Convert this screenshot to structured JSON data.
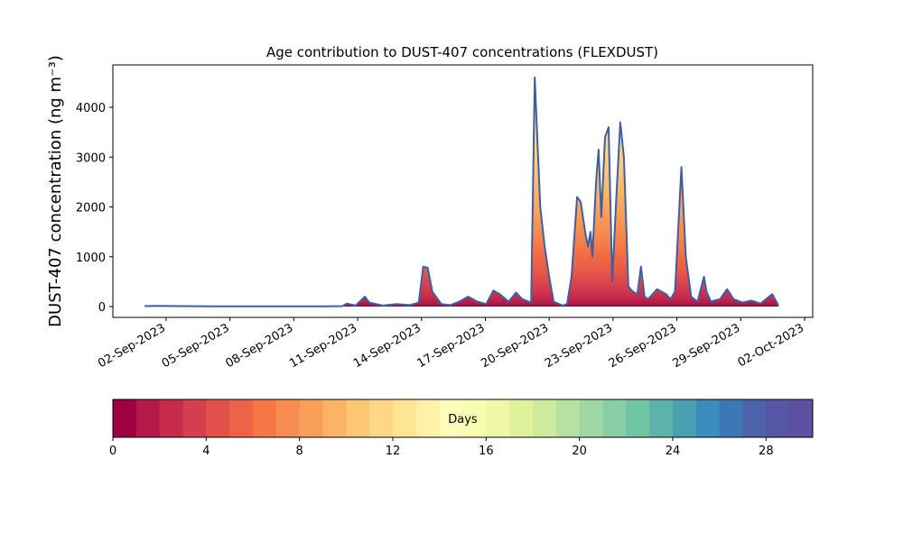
{
  "chart_data": {
    "type": "area-line",
    "title": "Age contribution to DUST-407 concentrations (FLEXDUST)",
    "ylabel": "DUST-407 concentration (ng m⁻³)",
    "x": [
      0.99,
      1.62,
      2.68,
      4.37,
      6.9,
      9.44,
      10.28,
      10.49,
      10.91,
      11.34,
      11.55,
      12.18,
      12.82,
      13.45,
      13.87,
      14.08,
      14.29,
      14.51,
      14.93,
      15.35,
      15.77,
      16.2,
      16.62,
      17.04,
      17.38,
      17.67,
      18.1,
      18.44,
      18.73,
      19.15,
      19.32,
      19.45,
      19.58,
      19.79,
      20.0,
      20.21,
      20.63,
      20.84,
      21.05,
      21.31,
      21.48,
      21.69,
      21.82,
      21.94,
      22.03,
      22.2,
      22.32,
      22.45,
      22.62,
      22.79,
      22.96,
      23.13,
      23.34,
      23.51,
      23.72,
      23.93,
      24.14,
      24.31,
      24.48,
      24.65,
      25.07,
      25.49,
      25.7,
      25.91,
      26.21,
      26.42,
      26.67,
      26.97,
      27.27,
      27.39,
      27.6,
      28.03,
      28.36,
      28.66,
      29.08,
      29.5,
      29.93,
      30.48,
      30.77
    ],
    "series": [
      {
        "color": "#3f5fa3",
        "values": [
          10,
          15,
          10,
          5,
          5,
          5,
          10,
          60,
          20,
          200,
          80,
          20,
          50,
          30,
          80,
          800,
          780,
          300,
          50,
          30,
          100,
          200,
          100,
          50,
          320,
          250,
          100,
          280,
          150,
          80,
          4600,
          3300,
          2000,
          1200,
          600,
          100,
          20,
          50,
          600,
          2200,
          2100,
          1500,
          1200,
          1500,
          1000,
          2500,
          3150,
          1800,
          3400,
          3600,
          500,
          2000,
          3700,
          3000,
          400,
          300,
          250,
          800,
          200,
          150,
          350,
          250,
          150,
          300,
          2800,
          1000,
          200,
          100,
          600,
          300,
          100,
          150,
          350,
          150,
          80,
          120,
          60,
          250,
          20
        ]
      }
    ],
    "xlim": [
      -0.5,
      32.38
    ],
    "xticks": [
      {
        "value": 2,
        "label": "02-Sep-2023"
      },
      {
        "value": 5,
        "label": "05-Sep-2023"
      },
      {
        "value": 8,
        "label": "08-Sep-2023"
      },
      {
        "value": 11,
        "label": "11-Sep-2023"
      },
      {
        "value": 14,
        "label": "14-Sep-2023"
      },
      {
        "value": 17,
        "label": "17-Sep-2023"
      },
      {
        "value": 20,
        "label": "20-Sep-2023"
      },
      {
        "value": 23,
        "label": "23-Sep-2023"
      },
      {
        "value": 26,
        "label": "26-Sep-2023"
      },
      {
        "value": 29,
        "label": "29-Sep-2023"
      },
      {
        "value": 32,
        "label": "02-Oct-2023"
      }
    ],
    "ylim": [
      -217,
      4851
    ],
    "yticks": [
      0,
      1000,
      2000,
      3000,
      4000
    ],
    "colorbar": {
      "label": "Days",
      "lim": [
        0,
        30
      ],
      "ticks": [
        0,
        4,
        8,
        12,
        16,
        20,
        24,
        28
      ],
      "colors": [
        "#9e0142",
        "#b31a48",
        "#c72c4a",
        "#d53e4f",
        "#e2514a",
        "#ec6445",
        "#f57748",
        "#f88d51",
        "#fa9f59",
        "#fdb365",
        "#fdc675",
        "#fed685",
        "#fee594",
        "#fff1a8",
        "#fffbb8",
        "#f7fcb3",
        "#eef8a6",
        "#dff29b",
        "#cdeb9d",
        "#b8e1a1",
        "#9fd7a4",
        "#86cea4",
        "#6fc4a4",
        "#5bb3a9",
        "#4aa0b0",
        "#3a8cba",
        "#3d77b6",
        "#4c63ac",
        "#5556a6",
        "#5e4fa2"
      ]
    }
  }
}
